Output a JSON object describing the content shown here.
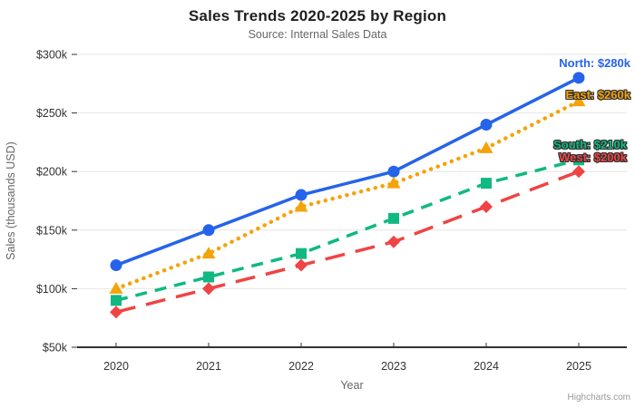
{
  "header": {
    "title": "Sales Trends 2020-2025 by Region",
    "subtitle": "Source: Internal Sales Data"
  },
  "chart_data": {
    "type": "line",
    "title": "Sales Trends 2020-2025 by Region",
    "subtitle": "Source: Internal Sales Data",
    "xlabel": "Year",
    "ylabel": "Sales (thousands USD)",
    "categories": [
      "2020",
      "2021",
      "2022",
      "2023",
      "2024",
      "2025"
    ],
    "series": [
      {
        "name": "North",
        "color": "#2563eb",
        "line_style": "solid",
        "marker": "circle",
        "values": [
          120,
          150,
          180,
          200,
          240,
          280
        ],
        "end_label": "North: $280k",
        "end_label_outline": false
      },
      {
        "name": "East",
        "color": "#f5a30a",
        "line_style": "dot",
        "marker": "triangle",
        "values": [
          100,
          130,
          170,
          190,
          220,
          260
        ],
        "end_label": "East: $260k",
        "end_label_outline": true
      },
      {
        "name": "South",
        "color": "#10b981",
        "line_style": "dash",
        "marker": "square",
        "values": [
          90,
          110,
          130,
          160,
          190,
          210
        ],
        "end_label": "South: $210k",
        "end_label_outline": true
      },
      {
        "name": "West",
        "color": "#ef4444",
        "line_style": "longdash",
        "marker": "diamond",
        "values": [
          80,
          100,
          120,
          140,
          170,
          200
        ],
        "end_label": "West: $200k",
        "end_label_outline": true
      }
    ],
    "ylim": [
      50,
      300
    ],
    "yticks": [
      {
        "value": 50,
        "label": "$50k"
      },
      {
        "value": 100,
        "label": "$100k"
      },
      {
        "value": 150,
        "label": "$150k"
      },
      {
        "value": 200,
        "label": "$200k"
      },
      {
        "value": 250,
        "label": "$250k"
      },
      {
        "value": 300,
        "label": "$300k"
      }
    ],
    "grid": true,
    "legend": "none",
    "units": "thousands USD"
  },
  "credit": {
    "label": "Highcharts.com"
  }
}
